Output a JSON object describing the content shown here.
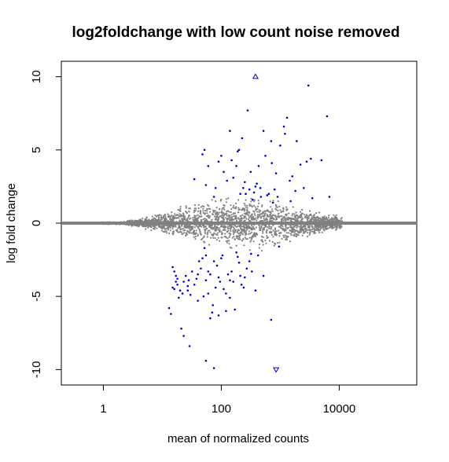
{
  "chart_data": {
    "type": "scatter",
    "title": "log2foldchange with low count noise removed",
    "xlabel": "mean of normalized counts",
    "ylabel": "log fold change",
    "x_scale": "log10",
    "xlim": [
      0.2,
      200000
    ],
    "ylim": [
      -11,
      11
    ],
    "x_ticks": [
      {
        "value": 1,
        "label": "1"
      },
      {
        "value": 100,
        "label": "100"
      },
      {
        "value": 10000,
        "label": "10000"
      }
    ],
    "y_ticks": [
      {
        "value": -10,
        "label": "-10"
      },
      {
        "value": -5,
        "label": "-5"
      },
      {
        "value": 0,
        "label": "0"
      },
      {
        "value": 5,
        "label": "5"
      },
      {
        "value": 10,
        "label": "10"
      }
    ],
    "grid": false,
    "legend": "none",
    "reference_line": {
      "y": 0,
      "color": "#808080"
    },
    "colors": {
      "non_significant": "#808080",
      "significant": "#0000cc",
      "out_of_range_marker": "#0000cc"
    },
    "series": [
      {
        "significant": true,
        "points": [
          [
            13,
            -5.8
          ],
          [
            14,
            -6.2
          ],
          [
            15,
            -3.0
          ],
          [
            16,
            -3.3
          ],
          [
            17,
            -3.6
          ],
          [
            18,
            -3.8
          ],
          [
            16,
            -4.5
          ],
          [
            18,
            -4.2
          ],
          [
            20,
            -4.6
          ],
          [
            22,
            -4.8
          ],
          [
            19,
            -5.1
          ],
          [
            17,
            -4.0
          ],
          [
            15,
            -4.4
          ],
          [
            23,
            -4.0
          ],
          [
            25,
            -3.6
          ],
          [
            27,
            -4.3
          ],
          [
            30,
            -4.9
          ],
          [
            28,
            -3.9
          ],
          [
            21,
            -7.2
          ],
          [
            23,
            -7.7
          ],
          [
            29,
            -8.4
          ],
          [
            27,
            -4.6
          ],
          [
            32,
            -3.3
          ],
          [
            35,
            -4.2
          ],
          [
            38,
            -3.8
          ],
          [
            40,
            -5.3
          ],
          [
            45,
            -3.1
          ],
          [
            48,
            -2.4
          ],
          [
            50,
            -5.0
          ],
          [
            55,
            -3.9
          ],
          [
            60,
            -4.8
          ],
          [
            55,
            -2.2
          ],
          [
            42,
            -2.6
          ],
          [
            65,
            -3.5
          ],
          [
            70,
            -6.1
          ],
          [
            72,
            -5.6
          ],
          [
            80,
            -4.4
          ],
          [
            90,
            -3.7
          ],
          [
            95,
            -4.0
          ],
          [
            100,
            -2.4
          ],
          [
            105,
            -2.2
          ],
          [
            110,
            -4.5
          ],
          [
            120,
            -4.8
          ],
          [
            85,
            -2.9
          ],
          [
            75,
            -2.6
          ],
          [
            130,
            -3.5
          ],
          [
            140,
            -3.9
          ],
          [
            150,
            -3.3
          ],
          [
            160,
            -4.0
          ],
          [
            170,
            -5.9
          ],
          [
            180,
            -2.0
          ],
          [
            190,
            -2.3
          ],
          [
            200,
            -2.7
          ],
          [
            210,
            -3.6
          ],
          [
            220,
            -4.2
          ],
          [
            240,
            -4.4
          ],
          [
            250,
            -3.7
          ],
          [
            270,
            -3.1
          ],
          [
            300,
            -2.6
          ],
          [
            320,
            -2.1
          ],
          [
            330,
            -3.3
          ],
          [
            380,
            -4.6
          ],
          [
            420,
            -2.2
          ],
          [
            520,
            -3.6
          ],
          [
            700,
            -6.6
          ],
          [
            950,
            -1.6
          ],
          [
            120,
            -6.0
          ],
          [
            90,
            -6.3
          ],
          [
            65,
            -6.5
          ],
          [
            55,
            -9.4
          ],
          [
            75,
            -9.9
          ],
          [
            40,
            -3.5
          ],
          [
            140,
            -5.1
          ],
          [
            52,
            -1.7
          ],
          [
            60,
            -3.3
          ],
          [
            35,
            3.0
          ],
          [
            48,
            4.7
          ],
          [
            52,
            5.0
          ],
          [
            55,
            2.6
          ],
          [
            60,
            3.9
          ],
          [
            75,
            1.8
          ],
          [
            80,
            2.4
          ],
          [
            90,
            4.2
          ],
          [
            100,
            4.6
          ],
          [
            110,
            3.5
          ],
          [
            125,
            2.9
          ],
          [
            140,
            6.3
          ],
          [
            150,
            4.3
          ],
          [
            160,
            3.1
          ],
          [
            180,
            3.9
          ],
          [
            190,
            4.9
          ],
          [
            200,
            5.0
          ],
          [
            210,
            2.0
          ],
          [
            225,
            5.8
          ],
          [
            235,
            2.4
          ],
          [
            250,
            2.8
          ],
          [
            260,
            2.0
          ],
          [
            280,
            7.7
          ],
          [
            300,
            2.3
          ],
          [
            315,
            3.5
          ],
          [
            340,
            1.6
          ],
          [
            360,
            2.1
          ],
          [
            380,
            2.5
          ],
          [
            400,
            2.7
          ],
          [
            430,
            3.9
          ],
          [
            460,
            2.4
          ],
          [
            470,
            1.8
          ],
          [
            520,
            6.3
          ],
          [
            560,
            4.6
          ],
          [
            600,
            1.9
          ],
          [
            640,
            2.0
          ],
          [
            700,
            5.6
          ],
          [
            720,
            4.1
          ],
          [
            750,
            1.4
          ],
          [
            800,
            2.3
          ],
          [
            850,
            3.4
          ],
          [
            900,
            1.8
          ],
          [
            1000,
            5.3
          ],
          [
            1150,
            6.6
          ],
          [
            1200,
            6.1
          ],
          [
            1300,
            7.2
          ],
          [
            1450,
            2.9
          ],
          [
            1500,
            1.5
          ],
          [
            1600,
            3.2
          ],
          [
            1900,
            5.6
          ],
          [
            2200,
            4.0
          ],
          [
            2800,
            4.2
          ],
          [
            3300,
            4.4
          ],
          [
            3000,
            9.4
          ],
          [
            3500,
            1.7
          ],
          [
            5000,
            4.3
          ],
          [
            6200,
            7.3
          ],
          [
            6800,
            1.8
          ],
          [
            2500,
            2.4
          ],
          [
            1800,
            2.2
          ]
        ]
      }
    ],
    "out_of_range": [
      {
        "x": 380,
        "y": 10,
        "direction": "up"
      },
      {
        "x": 850,
        "y": -10,
        "direction": "down"
      }
    ],
    "non_significant_cloud": "dense grey band of non-significant points around 0, widening with counts then narrowing"
  }
}
